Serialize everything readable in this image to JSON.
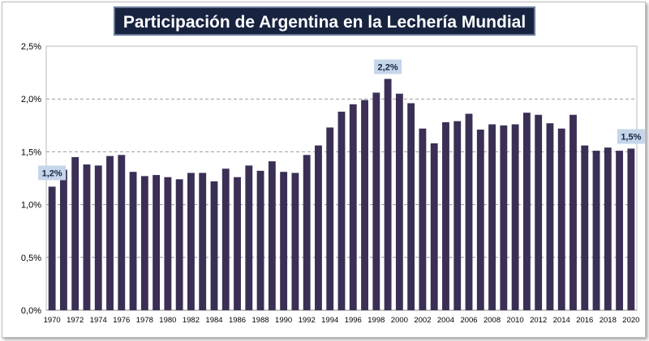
{
  "chart_data": {
    "type": "bar",
    "title": "Participación de Argentina en la Lechería Mundial",
    "xlabel": "",
    "ylabel": "",
    "ylim": [
      0,
      2.5
    ],
    "yticks": [
      "0,0%",
      "0,5%",
      "1,0%",
      "1,5%",
      "2,0%",
      "2,5%"
    ],
    "grid": "horizontal dashed",
    "bar_color": "#3b2f55",
    "categories": [
      1970,
      1971,
      1972,
      1973,
      1974,
      1975,
      1976,
      1977,
      1978,
      1979,
      1980,
      1981,
      1982,
      1983,
      1984,
      1985,
      1986,
      1987,
      1988,
      1989,
      1990,
      1991,
      1992,
      1993,
      1994,
      1995,
      1996,
      1997,
      1998,
      1999,
      2000,
      2001,
      2002,
      2003,
      2004,
      2005,
      2006,
      2007,
      2008,
      2009,
      2010,
      2011,
      2012,
      2013,
      2014,
      2015,
      2016,
      2017,
      2018,
      2019,
      2020
    ],
    "values": [
      1.17,
      1.33,
      1.45,
      1.38,
      1.37,
      1.46,
      1.47,
      1.31,
      1.27,
      1.28,
      1.26,
      1.24,
      1.3,
      1.3,
      1.22,
      1.34,
      1.26,
      1.37,
      1.32,
      1.41,
      1.31,
      1.3,
      1.47,
      1.56,
      1.73,
      1.88,
      1.95,
      1.99,
      2.06,
      2.19,
      2.05,
      1.96,
      1.72,
      1.58,
      1.78,
      1.79,
      1.86,
      1.71,
      1.76,
      1.75,
      1.76,
      1.87,
      1.85,
      1.77,
      1.72,
      1.85,
      1.56,
      1.51,
      1.54,
      1.51,
      1.53
    ],
    "annotations": [
      {
        "year": 1970,
        "text": "1,2%"
      },
      {
        "year": 1999,
        "text": "2,2%"
      },
      {
        "year": 2020,
        "text": "1,5%"
      }
    ]
  }
}
